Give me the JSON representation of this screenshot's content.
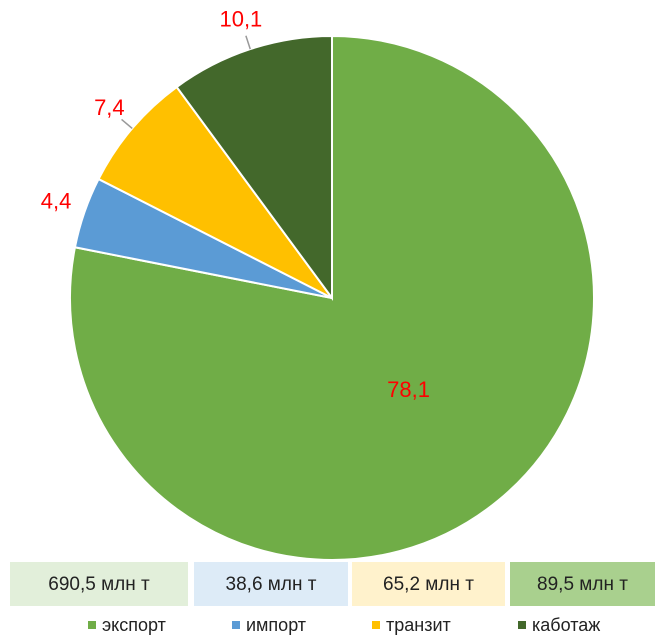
{
  "chart_data": {
    "type": "pie",
    "categories": [
      "экспорт",
      "импорт",
      "транзит",
      "каботаж"
    ],
    "values": [
      78.1,
      4.4,
      7.4,
      10.1
    ],
    "value_labels": [
      "78,1",
      "4,4",
      "7,4",
      "10,1"
    ],
    "colors": [
      "#70ad47",
      "#5b9bd5",
      "#ffc000",
      "#43682b"
    ],
    "annotations": [
      "690,5 млн т",
      "38,6 млн т",
      "65,2 млн т",
      "89,5 млн т"
    ]
  }
}
